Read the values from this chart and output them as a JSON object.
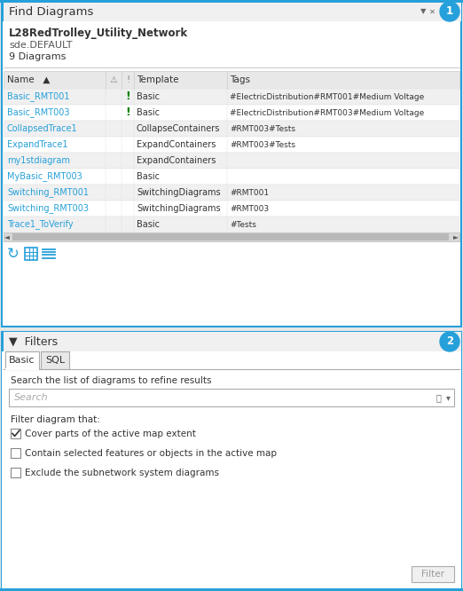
{
  "bg_color": "#e8e8e8",
  "section1_title": "Find Diagrams",
  "network_name": "L28RedTrolley_Utility_Network",
  "db_name": "sde.DEFAULT",
  "diagram_count": "9 Diagrams",
  "table_rows": [
    [
      "Basic_RMT001",
      "!",
      "Basic",
      "#ElectricDistribution#RMT001#Medium Voltage"
    ],
    [
      "Basic_RMT003",
      "!",
      "Basic",
      "#ElectricDistribution#RMT003#Medium Voltage"
    ],
    [
      "CollapsedTrace1",
      "",
      "CollapseContainers",
      "#RMT003#Tests"
    ],
    [
      "ExpandTrace1",
      "",
      "ExpandContainers",
      "#RMT003#Tests"
    ],
    [
      "my1stdiagram",
      "",
      "ExpandContainers",
      ""
    ],
    [
      "MyBasic_RMT003",
      "",
      "Basic",
      ""
    ],
    [
      "Switching_RMT001",
      "",
      "SwitchingDiagrams",
      "#RMT001"
    ],
    [
      "Switching_RMT003",
      "",
      "SwitchingDiagrams",
      "#RMT003"
    ],
    [
      "Trace1_ToVerify",
      "",
      "Basic",
      "#Tests"
    ]
  ],
  "section2_title": "Filters",
  "tab_basic": "Basic",
  "tab_sql": "SQL",
  "search_placeholder": "Search",
  "filter_label": "Search the list of diagrams to refine results",
  "filter_diagram_label": "Filter diagram that:",
  "checkboxes": [
    {
      "label": "Cover parts of the active map extent",
      "checked": true
    },
    {
      "label": "Contain selected features or objects in the active map",
      "checked": false
    },
    {
      "label": "Exclude the subnetwork system diagrams",
      "checked": false
    }
  ],
  "filter_button": "Filter",
  "badge_color": "#26a0da",
  "cyan_border": "#26a0da",
  "row_alt_color": "#f0f0f0",
  "row_color": "#ffffff",
  "exclaim_color": "#008000",
  "link_color": "#26a0da",
  "header_bg": "#e8e8e8",
  "panel_bg": "#ffffff",
  "tab_content_bg": "#ffffff"
}
